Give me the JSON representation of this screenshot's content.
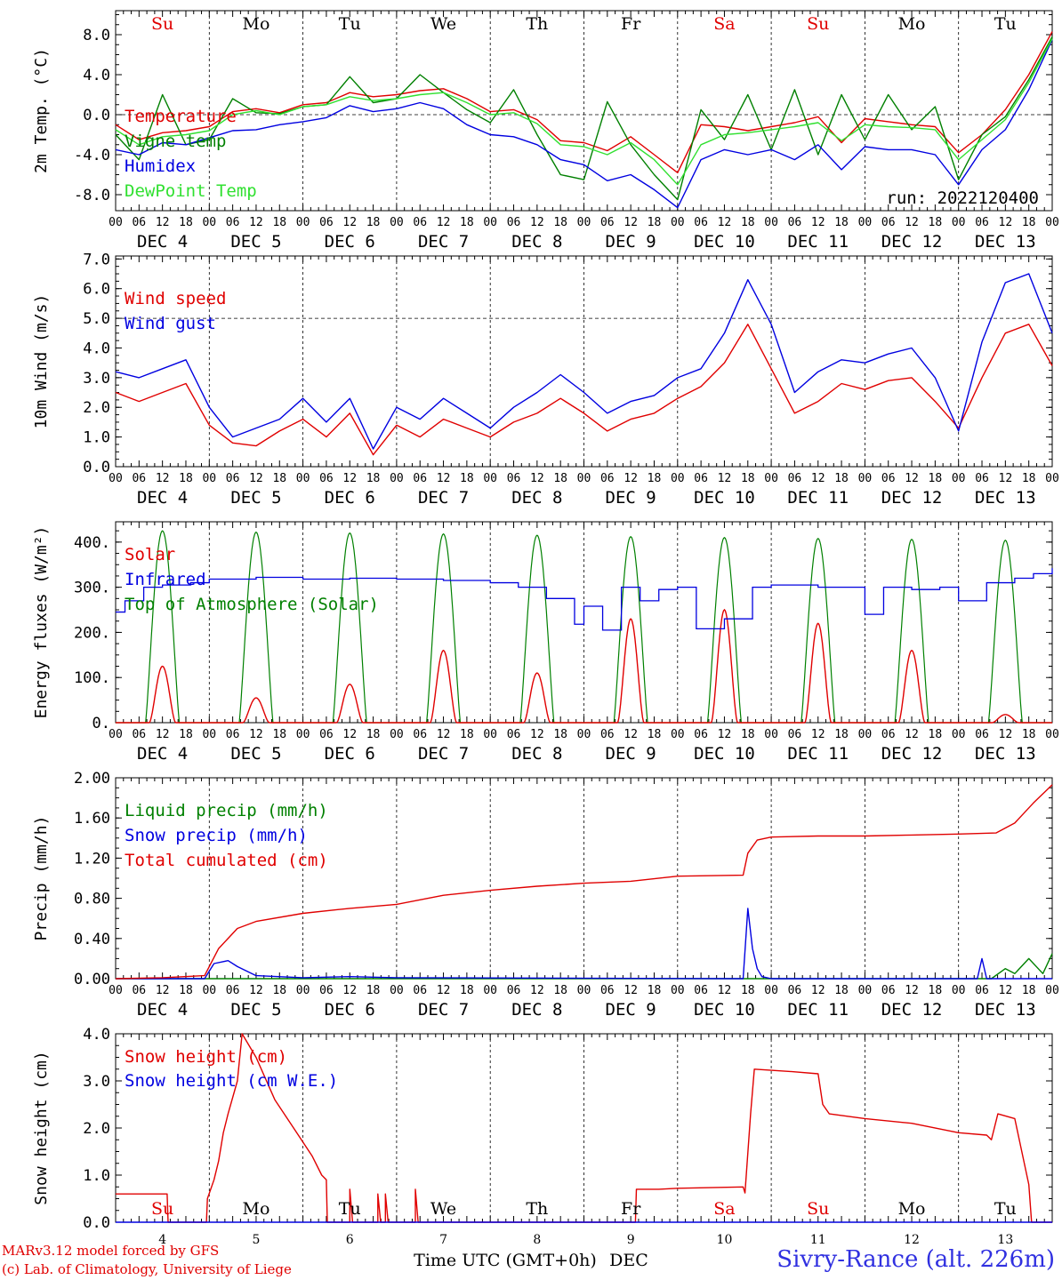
{
  "meta": {
    "run_label": "run: 2022120400",
    "footer_line1": "MARv3.12 model forced by GFS",
    "footer_line2": "(c) Lab. of Climatology, University of Liege",
    "station": "Sivry-Rance (alt. 226m)",
    "xlabel": "Time UTC (GMT+0h)",
    "xunit": "DEC"
  },
  "axis": {
    "hour_ticks": [
      "00",
      "06",
      "12",
      "18"
    ],
    "end_tick": "00",
    "date_labels": [
      "DEC  4",
      "DEC  5",
      "DEC  6",
      "DEC  7",
      "DEC  8",
      "DEC  9",
      "DEC 10",
      "DEC 11",
      "DEC 12",
      "DEC 13"
    ],
    "weekdays": [
      "Su",
      "Mo",
      "Tu",
      "We",
      "Th",
      "Fr",
      "Sa",
      "Su",
      "Mo",
      "Tu"
    ],
    "weekend_flags": [
      true,
      false,
      false,
      false,
      false,
      false,
      true,
      true,
      false,
      false
    ],
    "day_numbers": [
      "4",
      "5",
      "6",
      "7",
      "8",
      "9",
      "10",
      "11",
      "12",
      "13"
    ]
  },
  "colors": {
    "red": "#e00000",
    "green": "#008000",
    "blue": "#0000e0",
    "lightgreen": "#30e030",
    "weekend": "#e00000",
    "text": "#000000"
  },
  "chart_data": [
    {
      "type": "line",
      "ylabel": "2m Temp. (°C)",
      "ylim": [
        -9.6,
        10.4
      ],
      "yticks": [
        -8,
        -4,
        0,
        4,
        8
      ],
      "ytick_labels": [
        "-8.0",
        "-4.0",
        "0.0",
        "4.0",
        "8.0"
      ],
      "ref_line": 0,
      "x_days": [
        0,
        0.25,
        0.5,
        0.75,
        1,
        1.25,
        1.5,
        1.75,
        2,
        2.25,
        2.5,
        2.75,
        3,
        3.25,
        3.5,
        3.75,
        4,
        4.25,
        4.5,
        4.75,
        5,
        5.25,
        5.5,
        5.75,
        6,
        6.25,
        6.5,
        6.75,
        7,
        7.25,
        7.5,
        7.75,
        8,
        8.25,
        8.5,
        8.75,
        9,
        9.25,
        9.5,
        9.75,
        10
      ],
      "series": [
        {
          "name": "Temperature",
          "color": "#e00000",
          "values": [
            -1.0,
            -2.5,
            -1.8,
            -1.6,
            -1.2,
            0.3,
            0.6,
            0.2,
            1.0,
            1.2,
            2.2,
            1.8,
            2.0,
            2.4,
            2.6,
            1.6,
            0.3,
            0.5,
            -0.5,
            -2.6,
            -2.8,
            -3.6,
            -2.2,
            -4.0,
            -5.8,
            -1.0,
            -1.2,
            -1.6,
            -1.2,
            -0.8,
            -0.2,
            -2.8,
            -0.4,
            -0.7,
            -1.0,
            -1.2,
            -3.8,
            -2.0,
            0.5,
            4.0,
            8.3
          ]
        },
        {
          "name": "Vigne temp",
          "color": "#008000",
          "values": [
            -2.0,
            -4.5,
            2.0,
            -3.0,
            -2.5,
            1.6,
            0.2,
            0.1,
            0.8,
            1.0,
            3.8,
            1.2,
            1.6,
            4.0,
            2.2,
            0.5,
            -0.8,
            2.5,
            -2.0,
            -6.0,
            -6.5,
            1.3,
            -3.0,
            -6.0,
            -8.5,
            0.5,
            -2.5,
            2.0,
            -3.5,
            2.5,
            -4.0,
            2.0,
            -2.5,
            2.0,
            -1.5,
            0.8,
            -6.5,
            -2.0,
            -0.2,
            3.5,
            7.8
          ]
        },
        {
          "name": "Humidex",
          "color": "#0000e0",
          "values": [
            -3.5,
            -4.0,
            -2.8,
            -3.0,
            -2.3,
            -1.6,
            -1.5,
            -1.0,
            -0.7,
            -0.3,
            0.9,
            0.3,
            0.6,
            1.2,
            0.6,
            -1.0,
            -2.0,
            -2.2,
            -3.0,
            -4.5,
            -5.0,
            -6.6,
            -6.0,
            -7.5,
            -9.3,
            -4.5,
            -3.5,
            -4.0,
            -3.5,
            -4.5,
            -3.0,
            -5.5,
            -3.2,
            -3.5,
            -3.5,
            -4.0,
            -7.0,
            -3.5,
            -1.5,
            2.5,
            7.5
          ]
        },
        {
          "name": "DewPoint Temp",
          "color": "#30e030",
          "values": [
            -1.5,
            -3.0,
            -2.2,
            -2.0,
            -1.6,
            0.0,
            0.4,
            0.0,
            0.8,
            1.0,
            1.8,
            1.4,
            1.6,
            2.0,
            2.2,
            1.2,
            0.0,
            0.2,
            -0.9,
            -3.0,
            -3.2,
            -4.0,
            -2.8,
            -4.5,
            -7.0,
            -3.0,
            -2.0,
            -1.8,
            -1.5,
            -1.2,
            -0.8,
            -2.6,
            -1.0,
            -1.2,
            -1.3,
            -1.5,
            -4.5,
            -2.5,
            -0.5,
            3.2,
            7.6
          ]
        }
      ]
    },
    {
      "type": "line",
      "ylabel": "10m Wind (m/s)",
      "ylim": [
        0,
        7.1
      ],
      "yticks": [
        0,
        1,
        2,
        3,
        4,
        5,
        6,
        7
      ],
      "ytick_labels": [
        "0.0",
        "1.0",
        "2.0",
        "3.0",
        "4.0",
        "5.0",
        "6.0",
        "7.0"
      ],
      "ref_line": 5,
      "x_days": [
        0,
        0.25,
        0.5,
        0.75,
        1,
        1.25,
        1.5,
        1.75,
        2,
        2.25,
        2.5,
        2.75,
        3,
        3.25,
        3.5,
        3.75,
        4,
        4.25,
        4.5,
        4.75,
        5,
        5.25,
        5.5,
        5.75,
        6,
        6.25,
        6.5,
        6.75,
        7,
        7.25,
        7.5,
        7.75,
        8,
        8.25,
        8.5,
        8.75,
        9,
        9.25,
        9.5,
        9.75,
        10
      ],
      "series": [
        {
          "name": "Wind speed",
          "color": "#e00000",
          "values": [
            2.5,
            2.2,
            2.5,
            2.8,
            1.4,
            0.8,
            0.7,
            1.2,
            1.6,
            1.0,
            1.8,
            0.4,
            1.4,
            1.0,
            1.6,
            1.3,
            1.0,
            1.5,
            1.8,
            2.3,
            1.8,
            1.2,
            1.6,
            1.8,
            2.3,
            2.7,
            3.5,
            4.8,
            3.3,
            1.8,
            2.2,
            2.8,
            2.6,
            2.9,
            3.0,
            2.2,
            1.3,
            3.0,
            4.5,
            4.8,
            3.4
          ]
        },
        {
          "name": "Wind gust",
          "color": "#0000e0",
          "values": [
            3.2,
            3.0,
            3.3,
            3.6,
            2.0,
            1.0,
            1.3,
            1.6,
            2.3,
            1.5,
            2.3,
            0.6,
            2.0,
            1.6,
            2.3,
            1.8,
            1.3,
            2.0,
            2.5,
            3.1,
            2.5,
            1.8,
            2.2,
            2.4,
            3.0,
            3.3,
            4.5,
            6.3,
            4.8,
            2.5,
            3.2,
            3.6,
            3.5,
            3.8,
            4.0,
            3.0,
            1.2,
            4.2,
            6.2,
            6.5,
            4.5
          ]
        }
      ]
    },
    {
      "type": "line",
      "ylabel": "Energy fluxes (W/m²)",
      "ylim": [
        0,
        445
      ],
      "yticks": [
        0,
        100,
        200,
        300,
        400
      ],
      "ytick_labels": [
        "0.",
        "100.",
        "200.",
        "300.",
        "400."
      ],
      "ref_line": null,
      "solar_peaks": [
        125,
        55,
        85,
        160,
        110,
        230,
        250,
        220,
        160,
        18
      ],
      "toa_peaks": [
        425,
        422,
        420,
        418,
        415,
        412,
        410,
        408,
        406,
        404
      ],
      "series": [
        {
          "name": "Solar",
          "color": "#e00000"
        },
        {
          "name": "Infrared",
          "color": "#0000e0",
          "x_days": [
            0,
            0.1,
            0.3,
            0.5,
            0.8,
            1.0,
            1.5,
            2.0,
            2.5,
            3.0,
            3.5,
            4.0,
            4.3,
            4.6,
            4.9,
            5.0,
            5.2,
            5.4,
            5.6,
            5.8,
            6.0,
            6.2,
            6.5,
            6.8,
            7.0,
            7.5,
            8.0,
            8.2,
            8.5,
            8.8,
            9.0,
            9.3,
            9.6,
            9.8,
            10.0
          ],
          "values": [
            245,
            270,
            300,
            305,
            310,
            318,
            322,
            318,
            320,
            318,
            315,
            310,
            300,
            275,
            218,
            258,
            205,
            300,
            270,
            295,
            300,
            208,
            230,
            300,
            305,
            300,
            240,
            300,
            295,
            300,
            270,
            310,
            320,
            330,
            342
          ]
        },
        {
          "name": "Top of Atmosphere (Solar)",
          "color": "#008000"
        }
      ]
    },
    {
      "type": "line",
      "ylabel": "Precip (mm/h)",
      "ylim": [
        0,
        2.0
      ],
      "yticks": [
        0,
        0.4,
        0.8,
        1.2,
        1.6,
        2.0
      ],
      "ytick_labels": [
        "0.00",
        "0.40",
        "0.80",
        "1.20",
        "1.60",
        "2.00"
      ],
      "ref_line": null,
      "series": [
        {
          "name": "Liquid precip (mm/h)",
          "color": "#008000",
          "x_days": [
            0,
            9.35,
            9.5,
            9.6,
            9.75,
            9.9,
            10.0
          ],
          "values": [
            0,
            0,
            0.1,
            0.05,
            0.2,
            0.05,
            0.25
          ]
        },
        {
          "name": "Snow precip (mm/h)",
          "color": "#0000e0",
          "x_days": [
            0,
            0.95,
            1.05,
            1.2,
            1.3,
            1.5,
            2.0,
            2.5,
            3.0,
            6.7,
            6.75,
            6.8,
            6.85,
            6.9,
            7.0,
            9.2,
            9.25,
            9.3,
            10.0
          ],
          "values": [
            0,
            0,
            0.15,
            0.18,
            0.12,
            0.03,
            0.01,
            0.02,
            0.01,
            0,
            0.7,
            0.3,
            0.1,
            0.02,
            0,
            0,
            0.2,
            0,
            0
          ]
        },
        {
          "name": "Total cumulated (cm)",
          "color": "#e00000",
          "x_days": [
            0,
            0.5,
            0.95,
            1.1,
            1.3,
            1.5,
            2.0,
            2.5,
            3.0,
            3.5,
            4.0,
            4.5,
            5.0,
            5.5,
            6.0,
            6.7,
            6.75,
            6.85,
            7.0,
            7.5,
            8.0,
            8.5,
            9.0,
            9.4,
            9.6,
            9.8,
            10.0
          ],
          "values": [
            0.0,
            0.01,
            0.03,
            0.3,
            0.5,
            0.57,
            0.65,
            0.7,
            0.74,
            0.83,
            0.88,
            0.92,
            0.95,
            0.97,
            1.02,
            1.03,
            1.25,
            1.38,
            1.41,
            1.42,
            1.42,
            1.43,
            1.44,
            1.45,
            1.55,
            1.75,
            1.93
          ]
        }
      ]
    },
    {
      "type": "line",
      "ylabel": "Snow height (cm)",
      "ylim": [
        0,
        4.0
      ],
      "yticks": [
        0,
        1,
        2,
        3,
        4
      ],
      "ytick_labels": [
        "0.0",
        "1.0",
        "2.0",
        "3.0",
        "4.0"
      ],
      "ref_line": null,
      "series": [
        {
          "name": "Snow height (cm)",
          "color": "#e00000",
          "x_days": [
            0,
            0.55,
            0.56,
            0.97,
            0.98,
            1.05,
            1.1,
            1.15,
            1.2,
            1.3,
            1.35,
            1.5,
            1.7,
            1.9,
            2.1,
            2.2,
            2.25,
            2.26,
            2.5,
            2.5,
            2.53,
            2.54,
            2.8,
            2.8,
            2.83,
            2.84,
            2.88,
            2.88,
            2.91,
            2.92,
            3.2,
            3.2,
            3.23,
            3.24,
            5.55,
            5.56,
            5.8,
            6.0,
            6.7,
            6.72,
            6.78,
            6.82,
            7.2,
            7.5,
            7.55,
            7.62,
            8.0,
            8.5,
            9.0,
            9.3,
            9.35,
            9.42,
            9.6,
            9.75,
            9.78,
            10.0
          ],
          "values": [
            0.6,
            0.6,
            0,
            0,
            0.5,
            0.9,
            1.3,
            1.9,
            2.3,
            3.0,
            4.0,
            3.5,
            2.6,
            2.0,
            1.4,
            1.0,
            0.9,
            0,
            0,
            0.7,
            0,
            0,
            0,
            0.6,
            0,
            0,
            0,
            0.6,
            0,
            0,
            0,
            0.7,
            0,
            0,
            0,
            0.7,
            0.7,
            0.72,
            0.75,
            0.62,
            2.3,
            3.25,
            3.2,
            3.15,
            2.5,
            2.3,
            2.2,
            2.1,
            1.9,
            1.85,
            1.75,
            2.3,
            2.2,
            0.8,
            0,
            0
          ]
        },
        {
          "name": "Snow height (cm W.E.)",
          "color": "#0000e0",
          "x_days": [
            0,
            10
          ],
          "values": [
            0,
            0
          ]
        }
      ]
    }
  ]
}
